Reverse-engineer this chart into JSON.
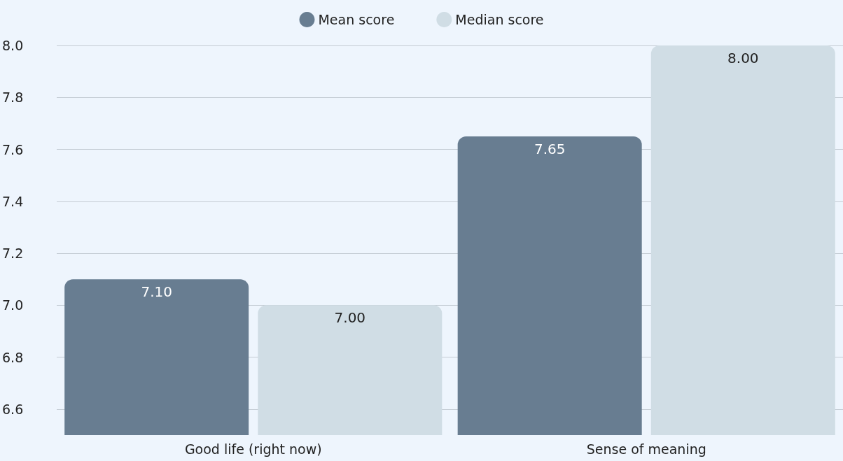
{
  "chart_data": {
    "type": "bar",
    "categories": [
      "Good life (right now)",
      "Sense of meaning"
    ],
    "series": [
      {
        "name": "Mean score",
        "color": "#687d91",
        "values": [
          7.1,
          7.65
        ],
        "value_labels": [
          "7.10",
          "7.65"
        ]
      },
      {
        "name": "Median score",
        "color": "#d0dde5",
        "values": [
          7.0,
          8.0
        ],
        "value_labels": [
          "7.00",
          "8.00"
        ]
      }
    ],
    "ylim": [
      6.5,
      8.0
    ],
    "yticks": [
      6.6,
      6.8,
      {
        "value": 7,
        "label": "7.0"
      },
      7.2,
      7.4,
      7.6,
      7.8,
      {
        "value": 8,
        "label": "8.0"
      }
    ],
    "grid": "y",
    "legend": "top"
  }
}
